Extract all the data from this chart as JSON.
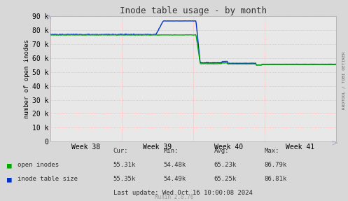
{
  "title": "Inode table usage - by month",
  "ylabel": "number of open inodes",
  "bg_color": "#d8d8d8",
  "plot_bg_color": "#e8e8e8",
  "ylim": [
    0,
    90000
  ],
  "yticks": [
    0,
    10000,
    20000,
    30000,
    40000,
    50000,
    60000,
    70000,
    80000,
    90000
  ],
  "ytick_labels": [
    "0",
    "10 k",
    "20 k",
    "30 k",
    "40 k",
    "50 k",
    "60 k",
    "70 k",
    "80 k",
    "90 k"
  ],
  "x_week_labels": [
    "Week 38",
    "Week 39",
    "Week 40",
    "Week 41"
  ],
  "open_inodes_color": "#00aa00",
  "inode_table_color": "#0033cc",
  "line_width": 1.0,
  "footer_text": "Munin 2.0.76",
  "right_label": "RRDTOOL / TOBI OETIKER",
  "legend_labels": [
    "open inodes",
    "inode table size"
  ],
  "stats_header": [
    "Cur:",
    "Min:",
    "Avg:",
    "Max:"
  ],
  "stats_open": [
    "55.31k",
    "54.48k",
    "65.23k",
    "86.79k"
  ],
  "stats_inode": [
    "55.35k",
    "54.49k",
    "65.25k",
    "86.81k"
  ],
  "last_update": "Last update: Wed Oct 16 10:00:08 2024"
}
